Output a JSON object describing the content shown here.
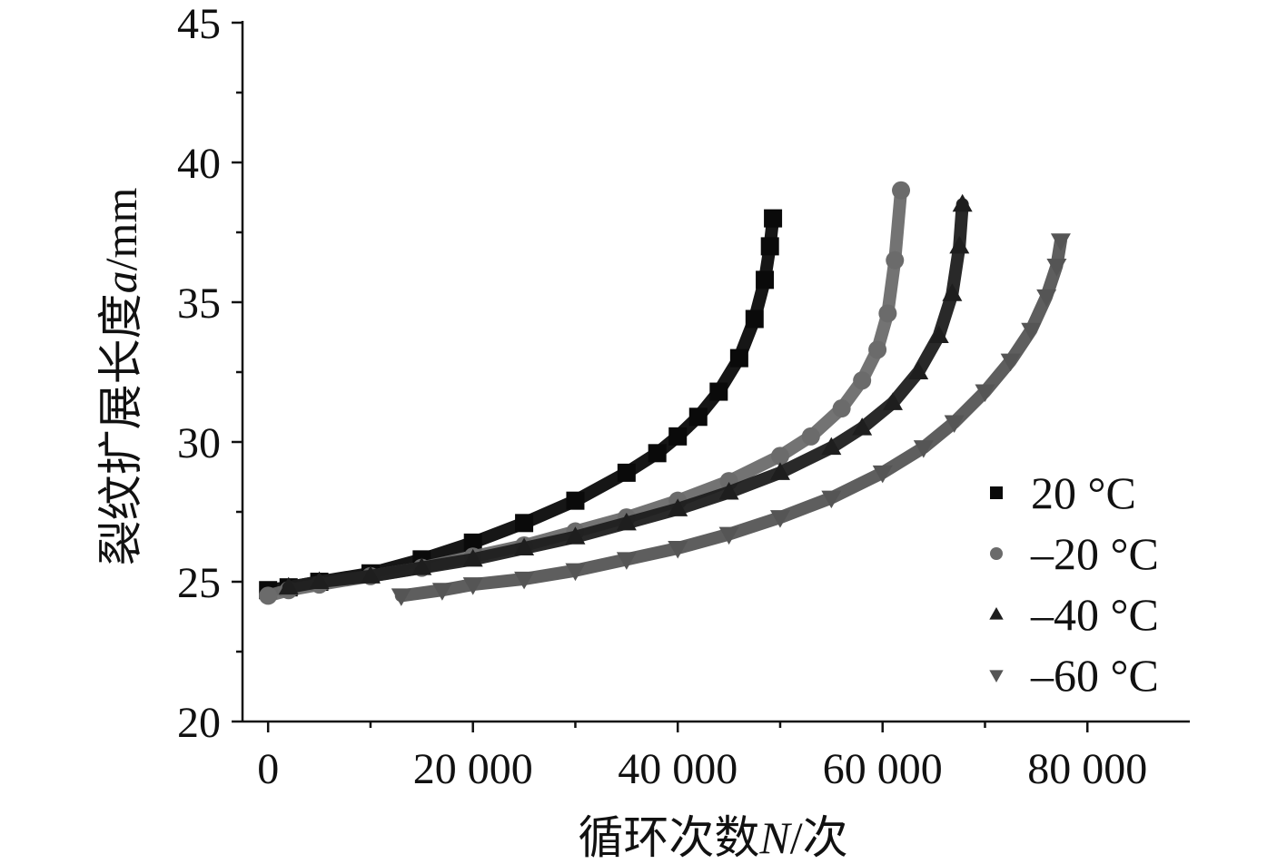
{
  "chart_data": {
    "type": "scatter",
    "xlabel": {
      "prefix": "循环次数",
      "var": "N",
      "suffix": "/次"
    },
    "ylabel": {
      "prefix": "裂纹扩展长度",
      "var": "a",
      "suffix": "/mm"
    },
    "xlim": [
      -2500,
      90000
    ],
    "ylim": [
      20,
      45
    ],
    "x_ticks": [
      {
        "value": 0,
        "label": "0"
      },
      {
        "value": 20000,
        "label": "20 000"
      },
      {
        "value": 40000,
        "label": "40 000"
      },
      {
        "value": 60000,
        "label": "60 000"
      },
      {
        "value": 80000,
        "label": "80 000"
      }
    ],
    "y_ticks": [
      {
        "value": 20,
        "label": "20"
      },
      {
        "value": 25,
        "label": "25"
      },
      {
        "value": 30,
        "label": "30"
      },
      {
        "value": 35,
        "label": "35"
      },
      {
        "value": 40,
        "label": "40"
      },
      {
        "value": 45,
        "label": "45"
      }
    ],
    "legend_position": "right",
    "series": [
      {
        "name": "20 °C",
        "marker": "square",
        "color": "#0a0a0a",
        "x": [
          0,
          2000,
          5000,
          10000,
          15000,
          20000,
          25000,
          30000,
          35000,
          38000,
          40000,
          42000,
          44000,
          46000,
          47500,
          48500,
          49000,
          49300
        ],
        "y": [
          24.7,
          24.8,
          25.0,
          25.3,
          25.8,
          26.4,
          27.1,
          27.9,
          28.9,
          29.6,
          30.2,
          30.9,
          31.8,
          33.0,
          34.4,
          35.8,
          37.0,
          38.0
        ]
      },
      {
        "name": "–20 °C",
        "marker": "circle",
        "color": "#6b6b6b",
        "x": [
          0,
          2000,
          5000,
          10000,
          15000,
          20000,
          25000,
          30000,
          35000,
          40000,
          45000,
          50000,
          53000,
          56000,
          58000,
          59500,
          60500,
          61200,
          61800
        ],
        "y": [
          24.5,
          24.7,
          24.9,
          25.2,
          25.5,
          25.9,
          26.3,
          26.8,
          27.3,
          27.9,
          28.6,
          29.5,
          30.2,
          31.2,
          32.2,
          33.3,
          34.6,
          36.5,
          39.0
        ]
      },
      {
        "name": "–40 °C",
        "marker": "triangle-up",
        "color": "#1e1e1e",
        "x": [
          2000,
          5000,
          10000,
          15000,
          20000,
          25000,
          30000,
          35000,
          40000,
          45000,
          50000,
          55000,
          58000,
          61000,
          63500,
          65500,
          66800,
          67500,
          67800
        ],
        "y": [
          24.8,
          25.0,
          25.2,
          25.5,
          25.8,
          26.2,
          26.6,
          27.1,
          27.6,
          28.2,
          28.9,
          29.8,
          30.5,
          31.4,
          32.5,
          33.8,
          35.3,
          37.0,
          38.5
        ]
      },
      {
        "name": "–60 °C",
        "marker": "triangle-down",
        "color": "#555555",
        "x": [
          13000,
          17000,
          20000,
          25000,
          30000,
          35000,
          40000,
          45000,
          50000,
          55000,
          60000,
          64000,
          67000,
          70000,
          72500,
          74500,
          76000,
          77000,
          77400
        ],
        "y": [
          24.5,
          24.7,
          24.9,
          25.1,
          25.4,
          25.8,
          26.2,
          26.7,
          27.3,
          28.0,
          28.9,
          29.8,
          30.7,
          31.8,
          32.9,
          34.0,
          35.2,
          36.3,
          37.2
        ]
      }
    ]
  }
}
